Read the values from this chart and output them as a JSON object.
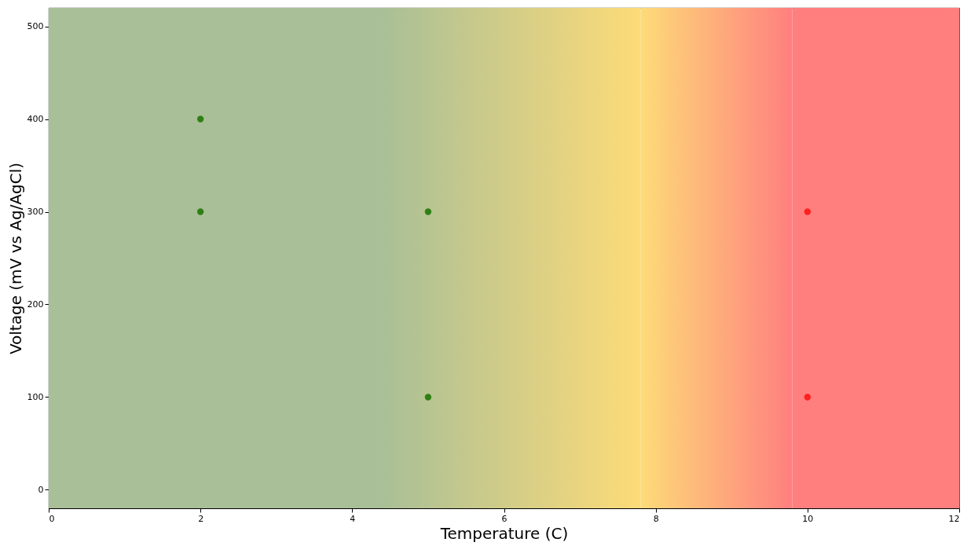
{
  "chart_data": {
    "type": "scatter",
    "xlabel": "Temperature (C)",
    "ylabel": "Voltage (mV vs Ag/AgCl)",
    "x": [
      2,
      2,
      5,
      5,
      10,
      10
    ],
    "values": [
      400,
      300,
      300,
      100,
      300,
      100
    ],
    "colors": [
      "#2f7f15",
      "#2f7f15",
      "#2f7f15",
      "#2f7f15",
      "#ff1f1f",
      "#ff1f1f"
    ],
    "xlim": [
      0,
      12
    ],
    "xticks": [
      0,
      2,
      4,
      6,
      8,
      10,
      12
    ],
    "ylim": [
      -20,
      520
    ],
    "yticks": [
      0,
      100,
      200,
      300,
      400,
      500
    ],
    "bands": [
      {
        "axis": "x",
        "from": 0,
        "to": 4.4,
        "color": "#a9bf97"
      },
      {
        "axis": "x",
        "from": 4.4,
        "to": 7.8,
        "color": "#a9bf97"
      },
      {
        "axis": "x",
        "from": 7.8,
        "to": 9.8,
        "color": "#fddb78"
      },
      {
        "axis": "x",
        "from": 9.8,
        "to": 12,
        "color": "#ff7f7f"
      }
    ],
    "marker": "circle",
    "grid": false,
    "legend": false
  }
}
